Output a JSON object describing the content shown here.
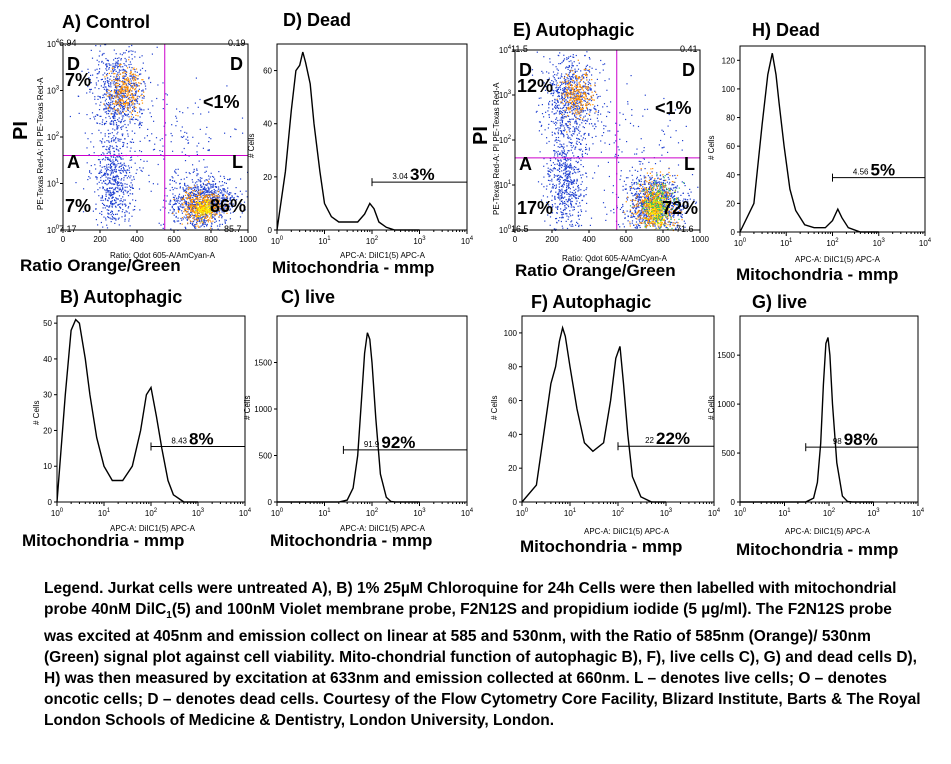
{
  "chart_data": [
    {
      "id": "A",
      "type": "scatter",
      "title": "A) Control",
      "xlabel": "Ratio Orange/Green",
      "xlabel_small": "Ratio: Qdot 605-A/AmCyan-A",
      "ylabel": "PI",
      "ylabel_small": "PE-Texas Red-A: PI PE-Texas Red-A",
      "xlim": [
        0,
        1000
      ],
      "xticks": [
        "0",
        "200",
        "400",
        "600",
        "800",
        "1000"
      ],
      "ylim_log": [
        1,
        10000
      ],
      "yticks": [
        "10^0",
        "10^1",
        "10^2",
        "10^3",
        "10^4"
      ],
      "gate_x": 550,
      "gate_y": 40,
      "quadrants": {
        "ul": {
          "letter": "D",
          "pct": "7%",
          "value": "6.94"
        },
        "ur": {
          "letter": "D",
          "pct": "<1%",
          "value": "0.19"
        },
        "ll": {
          "letter": "A",
          "pct": "7%",
          "value": "7.17"
        },
        "lr": {
          "letter": "L",
          "pct": "86%",
          "value": "85.7"
        }
      }
    },
    {
      "id": "D",
      "type": "line",
      "title": "D) Dead",
      "xlabel": "Mitochondria - mmp",
      "xlabel_small": "APC-A: DiIC1(5) APC-A",
      "ylabel_small": "# Cells",
      "xlim_log": [
        1,
        10000
      ],
      "ylim": [
        0,
        70
      ],
      "yticks": [
        0,
        20,
        40,
        60
      ],
      "gate": {
        "x_start": 100,
        "x_end": 10000,
        "y": 18,
        "value": "3.04",
        "pct": "3%"
      },
      "x": [
        1,
        1.5,
        2,
        2.5,
        3,
        3.5,
        4,
        5,
        6,
        8,
        10,
        14,
        20,
        30,
        50,
        70,
        90,
        110,
        140,
        200,
        300,
        1000
      ],
      "values": [
        0,
        22,
        45,
        60,
        62,
        67,
        63,
        55,
        40,
        22,
        10,
        5,
        3,
        3,
        3,
        6,
        10,
        8,
        3,
        1,
        0,
        0
      ]
    },
    {
      "id": "E",
      "type": "scatter",
      "title": "E) Autophagic",
      "xlabel": "Ratio Orange/Green",
      "xlabel_small": "Ratio: Qdot 605-A/AmCyan-A",
      "ylabel": "PI",
      "ylabel_small": "PE-Texas Red-A: PI PE-Texas Red-A",
      "xlim": [
        0,
        1000
      ],
      "xticks": [
        "0",
        "200",
        "400",
        "600",
        "800",
        "1000"
      ],
      "ylim_log": [
        1,
        10000
      ],
      "yticks": [
        "10^0",
        "10^1",
        "10^2",
        "10^3",
        "10^4"
      ],
      "gate_x": 550,
      "gate_y": 40,
      "quadrants": {
        "ul": {
          "letter": "D",
          "pct": "12%",
          "value": "11.5"
        },
        "ur": {
          "letter": "D",
          "pct": "<1%",
          "value": "0.41"
        },
        "ll": {
          "letter": "A",
          "pct": "17%",
          "value": "16.5"
        },
        "lr": {
          "letter": "L",
          "pct": "72%",
          "value": "71.6"
        }
      }
    },
    {
      "id": "H",
      "type": "line",
      "title": "H) Dead",
      "xlabel": "Mitochondria - mmp",
      "xlabel_small": "APC-A: DiIC1(5) APC-A",
      "ylabel_small": "# Cells",
      "xlim_log": [
        1,
        10000
      ],
      "ylim": [
        0,
        130
      ],
      "yticks": [
        0,
        20,
        40,
        60,
        80,
        100,
        120
      ],
      "gate": {
        "x_start": 100,
        "x_end": 10000,
        "y": 38,
        "value": "4.56",
        "pct": "5%"
      },
      "x": [
        1,
        2,
        3,
        4,
        5,
        6,
        7,
        9,
        12,
        16,
        25,
        40,
        70,
        100,
        130,
        160,
        220,
        400,
        1000
      ],
      "values": [
        0,
        20,
        75,
        110,
        125,
        110,
        90,
        60,
        30,
        15,
        5,
        3,
        3,
        8,
        16,
        10,
        3,
        0,
        0
      ]
    },
    {
      "id": "B",
      "type": "line",
      "title": "B) Autophagic",
      "xlabel": "Mitochondria - mmp",
      "xlabel_small": "APC-A: DiIC1(5) APC-A",
      "ylabel_small": "# Cells",
      "xlim_log": [
        1,
        10000
      ],
      "ylim": [
        0,
        52
      ],
      "yticks": [
        0,
        10,
        20,
        30,
        40,
        50
      ],
      "gate": {
        "x_start": 100,
        "x_end": 10000,
        "y": 15.5,
        "value": "8.43",
        "pct": "8%"
      },
      "x": [
        1,
        1.5,
        2,
        2.5,
        3,
        4,
        5,
        7,
        10,
        15,
        25,
        40,
        60,
        80,
        100,
        130,
        170,
        230,
        300,
        500,
        1000
      ],
      "values": [
        0,
        30,
        48,
        51,
        50,
        40,
        30,
        18,
        10,
        6,
        6,
        10,
        20,
        30,
        32,
        24,
        15,
        6,
        2,
        0,
        0
      ]
    },
    {
      "id": "C",
      "type": "line",
      "title": "C) live",
      "xlabel": "Mitochondria - mmp",
      "xlabel_small": "APC-A: DiIC1(5) APC-A",
      "ylabel_small": "# Cells",
      "xlim_log": [
        1,
        10000
      ],
      "ylim": [
        0,
        2000
      ],
      "yticks": [
        0,
        500,
        1000,
        1500
      ],
      "gate": {
        "x_start": 25,
        "x_end": 10000,
        "y": 560,
        "value": "91.9",
        "pct": "92%"
      },
      "x": [
        1,
        20,
        30,
        40,
        50,
        60,
        70,
        80,
        90,
        100,
        120,
        150,
        200,
        250,
        300,
        1000
      ],
      "values": [
        0,
        0,
        20,
        150,
        500,
        1100,
        1600,
        1820,
        1750,
        1500,
        900,
        300,
        50,
        5,
        0,
        0
      ]
    },
    {
      "id": "F",
      "type": "line",
      "title": "F) Autophagic",
      "xlabel": "Mitochondria - mmp",
      "xlabel_small": "APC-A: DiIC1(5) APC-A",
      "ylabel_small": "# Cells",
      "xlim_log": [
        1,
        10000
      ],
      "ylim": [
        0,
        110
      ],
      "yticks": [
        0,
        20,
        40,
        60,
        80,
        100
      ],
      "gate": {
        "x_start": 100,
        "x_end": 10000,
        "y": 33,
        "value": "22",
        "pct": "22%"
      },
      "x": [
        1,
        2,
        3,
        4,
        5,
        6,
        7,
        8,
        10,
        14,
        20,
        30,
        50,
        70,
        90,
        110,
        130,
        160,
        200,
        300,
        500,
        1000
      ],
      "values": [
        0,
        10,
        45,
        70,
        80,
        95,
        103,
        98,
        80,
        55,
        35,
        30,
        35,
        60,
        85,
        92,
        70,
        40,
        15,
        3,
        0,
        0
      ]
    },
    {
      "id": "G",
      "type": "line",
      "title": "G) live",
      "xlabel": "Mitochondria - mmp",
      "xlabel_small": "APC-A: DiIC1(5) APC-A",
      "ylabel_small": "# Cells",
      "xlim_log": [
        1,
        10000
      ],
      "ylim": [
        0,
        1900
      ],
      "yticks": [
        0,
        500,
        1000,
        1500
      ],
      "gate": {
        "x_start": 30,
        "x_end": 10000,
        "y": 560,
        "value": "98",
        "pct": "98%"
      },
      "x": [
        1,
        30,
        45,
        55,
        65,
        75,
        85,
        95,
        105,
        120,
        150,
        200,
        260,
        330,
        1000
      ],
      "values": [
        0,
        0,
        40,
        200,
        600,
        1200,
        1620,
        1680,
        1500,
        1000,
        400,
        60,
        5,
        0,
        0
      ]
    }
  ],
  "legend": {
    "part1": "Legend. Jurkat cells were untreated A), B) 1% 25",
    "mu": "µ",
    "part2": "M Chloroquine for 24h Cells were then labelled with mitochondrial probe 40nM DilC",
    "sub": "1",
    "part3": "(5) and 100nM Violet membrane probe, F2N12S and propidium iodide (5 ",
    "mu2": "µ",
    "part4": "g/ml). The F2N12S probe  was excited at 405nm and emission collect on linear at 585 and 530nm, with the Ratio of 585nm (Orange)/ 530nm (Green) signal plot against cell viability. Mito-chondrial function of autophagic B), F), live cells C), G) and dead cells D), H) was then measured by excitation at 633nm and emission collected at 660nm. L – denotes live cells; O – denotes oncotic cells; D – denotes dead cells. Courtesy of the Flow Cytometry Core Facility, Blizard Institute, Barts & The Royal London Schools of Medicine & Dentistry, London University, London."
  },
  "colors": {
    "axis": "#000000",
    "gate_line": "#cc00cc",
    "dot_blue": "#2040d0",
    "dot_orange": "#ff9000",
    "dot_yellow": "#ffee00",
    "dot_green": "#30c060"
  }
}
